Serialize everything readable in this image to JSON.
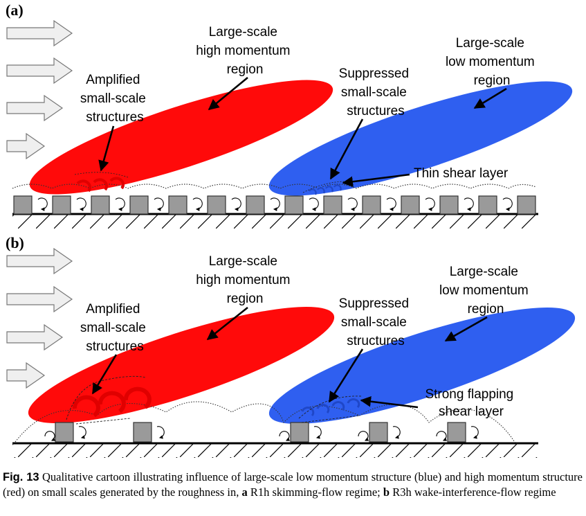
{
  "panel_a": {
    "tag": "(a)",
    "high_label": [
      "Large-scale",
      "high momentum",
      "region"
    ],
    "low_label": [
      "Large-scale",
      "low momentum",
      "region"
    ],
    "amplified_label": [
      "Amplified",
      "small-scale",
      "structures"
    ],
    "suppressed_label": [
      "Suppressed",
      "small-scale",
      "structures"
    ],
    "shear_label": [
      "Thin shear layer"
    ]
  },
  "panel_b": {
    "tag": "(b)",
    "high_label": [
      "Large-scale",
      "high momentum",
      "region"
    ],
    "low_label": [
      "Large-scale",
      "low momentum",
      "region"
    ],
    "amplified_label": [
      "Amplified",
      "small-scale",
      "structures"
    ],
    "suppressed_label": [
      "Suppressed",
      "small-scale",
      "structures"
    ],
    "shear_label": [
      "Strong flapping",
      "shear layer"
    ]
  },
  "caption": {
    "fig_label": "Fig. 13",
    "text_1": " Qualitative cartoon illustrating influence of large-scale low momentum structure (blue) and high momentum structure (red) on small scales generated by the roughness in, ",
    "a_key": "a",
    "text_2": " R1h skimming-flow regime; ",
    "b_key": "b",
    "text_3": " R3h wake-interference-flow regime"
  },
  "colors": {
    "high_momentum": "#ff0a0a",
    "low_momentum": "#2f5ff0",
    "roughness": "#9a9a9a",
    "arrow_fill": "#efefef"
  }
}
